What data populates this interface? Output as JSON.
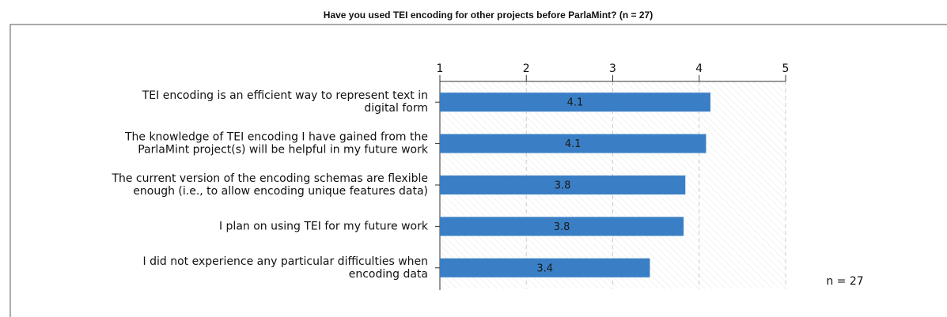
{
  "chart_data": {
    "type": "bar",
    "orientation": "horizontal",
    "title": "Have you used TEI encoding for other projects before ParlaMint? (n = 27)",
    "categories": [
      [
        "TEI encoding is an efficient way to represent text in",
        "digital form"
      ],
      [
        "The knowledge of TEI encoding I have gained from the",
        "ParlaMint project(s) will be helpful in my future work"
      ],
      [
        "The current version of the encoding schemas are flexible",
        "enough (i.e., to allow encoding unique features data)"
      ],
      [
        "I plan on using TEI for my future work"
      ],
      [
        "I did not experience any particular difficulties when",
        "encoding data"
      ]
    ],
    "values": [
      4.13,
      4.08,
      3.84,
      3.82,
      3.43
    ],
    "value_labels": [
      "4.1",
      "4.1",
      "3.8",
      "3.8",
      "3.4"
    ],
    "color": "#3a7fc5",
    "xlim": [
      1,
      5
    ],
    "xticks": [
      1,
      2,
      3,
      4,
      5
    ],
    "grid": true,
    "annotation": "n = 27"
  }
}
